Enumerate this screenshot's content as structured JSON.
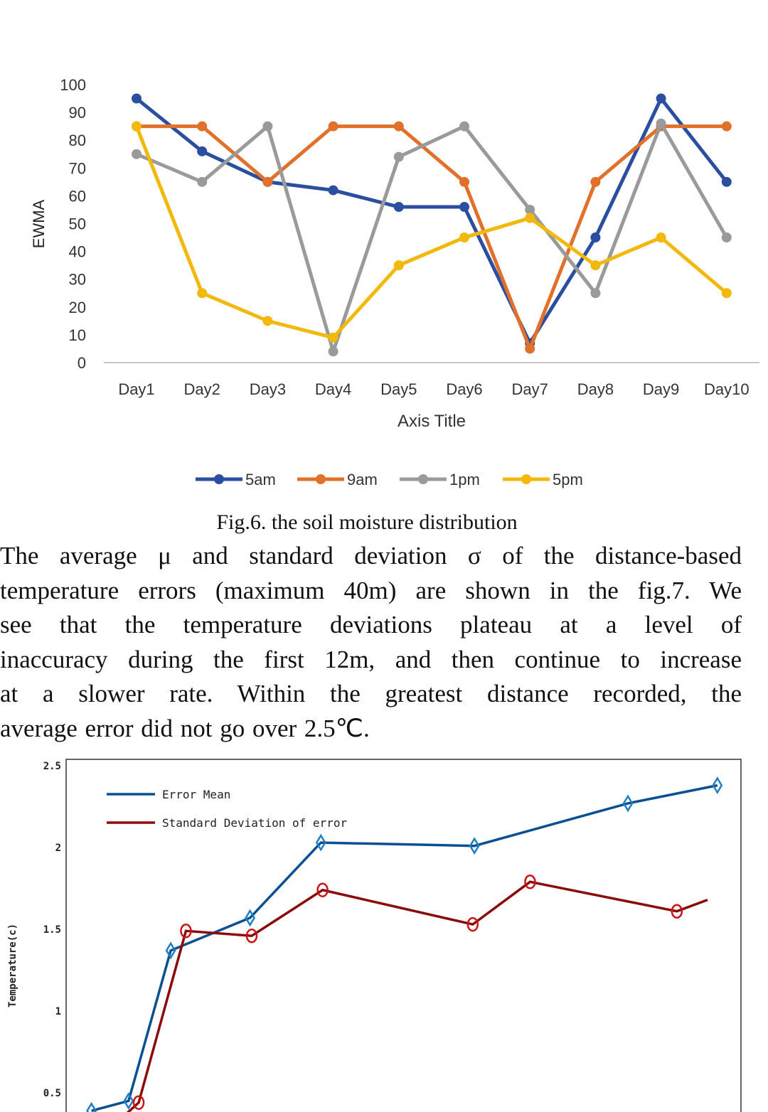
{
  "figure6": {
    "caption": "Fig.6. the soil moisture distribution",
    "chart_data": {
      "type": "line",
      "title": "",
      "xlabel": "Axis Title",
      "ylabel": "EWMA",
      "ylim": [
        0,
        100
      ],
      "yticks": [
        "0",
        "10",
        "20",
        "30",
        "40",
        "50",
        "60",
        "70",
        "80",
        "90",
        "100"
      ],
      "grid": false,
      "legend_position": "bottom",
      "categories": [
        "Day1",
        "Day2",
        "Day3",
        "Day4",
        "Day5",
        "Day6",
        "Day7",
        "Day8",
        "Day9",
        "Day10"
      ],
      "series": [
        {
          "name": "5am",
          "color": "#2a4ea0",
          "values": [
            95,
            76,
            65,
            62,
            56,
            56,
            7,
            45,
            95,
            65
          ]
        },
        {
          "name": "9am",
          "color": "#e0702a",
          "values": [
            85,
            85,
            65,
            85,
            85,
            65,
            5,
            65,
            85,
            85
          ]
        },
        {
          "name": "1pm",
          "color": "#9a9a9a",
          "values": [
            75,
            65,
            85,
            4,
            74,
            85,
            55,
            25,
            86,
            45
          ]
        },
        {
          "name": "5pm",
          "color": "#f2b90c",
          "values": [
            85,
            25,
            15,
            9,
            35,
            45,
            52,
            35,
            45,
            25
          ]
        }
      ]
    }
  },
  "paragraph": [
    "The average μ and standard deviation σ of the distance-based",
    "temperature errors (maximum 40m) are shown in the fig.7. We",
    "see that the temperature deviations plateau at a level of",
    "inaccuracy during the first 12m, and then continue to increase",
    "at a slower rate. Within the greatest distance recorded, the",
    "average error did not go over 2.5℃."
  ],
  "figure7": {
    "chart_data": {
      "type": "line",
      "title": "",
      "xlabel": "",
      "ylabel": "Temperature(c)",
      "ylim": [
        0.4,
        2.5
      ],
      "yticks": [
        "0.5",
        "1",
        "1.5",
        "2",
        "2.5"
      ],
      "grid": false,
      "legend_position": "top-left",
      "series": [
        {
          "name": "Error Mean",
          "color": "#0b4f93",
          "marker": "diamond",
          "marker_color": "#1f7fc4",
          "x": [
            1.5,
            3.7,
            6.2,
            10.9,
            15.1,
            24.2,
            33.3,
            38.6
          ],
          "y": [
            0.39,
            0.45,
            1.37,
            1.57,
            2.03,
            2.01,
            2.27,
            2.38
          ]
        },
        {
          "name": "Standard Deviation of error",
          "color": "#8b0a0a",
          "marker": "circle",
          "marker_color": "#c81414",
          "x": [
            2.8,
            4.3,
            7.1,
            11.0,
            15.2,
            24.1,
            27.5,
            36.2
          ],
          "y": [
            0.3,
            0.44,
            1.49,
            1.46,
            1.74,
            1.53,
            1.79,
            1.61
          ]
        }
      ]
    }
  }
}
